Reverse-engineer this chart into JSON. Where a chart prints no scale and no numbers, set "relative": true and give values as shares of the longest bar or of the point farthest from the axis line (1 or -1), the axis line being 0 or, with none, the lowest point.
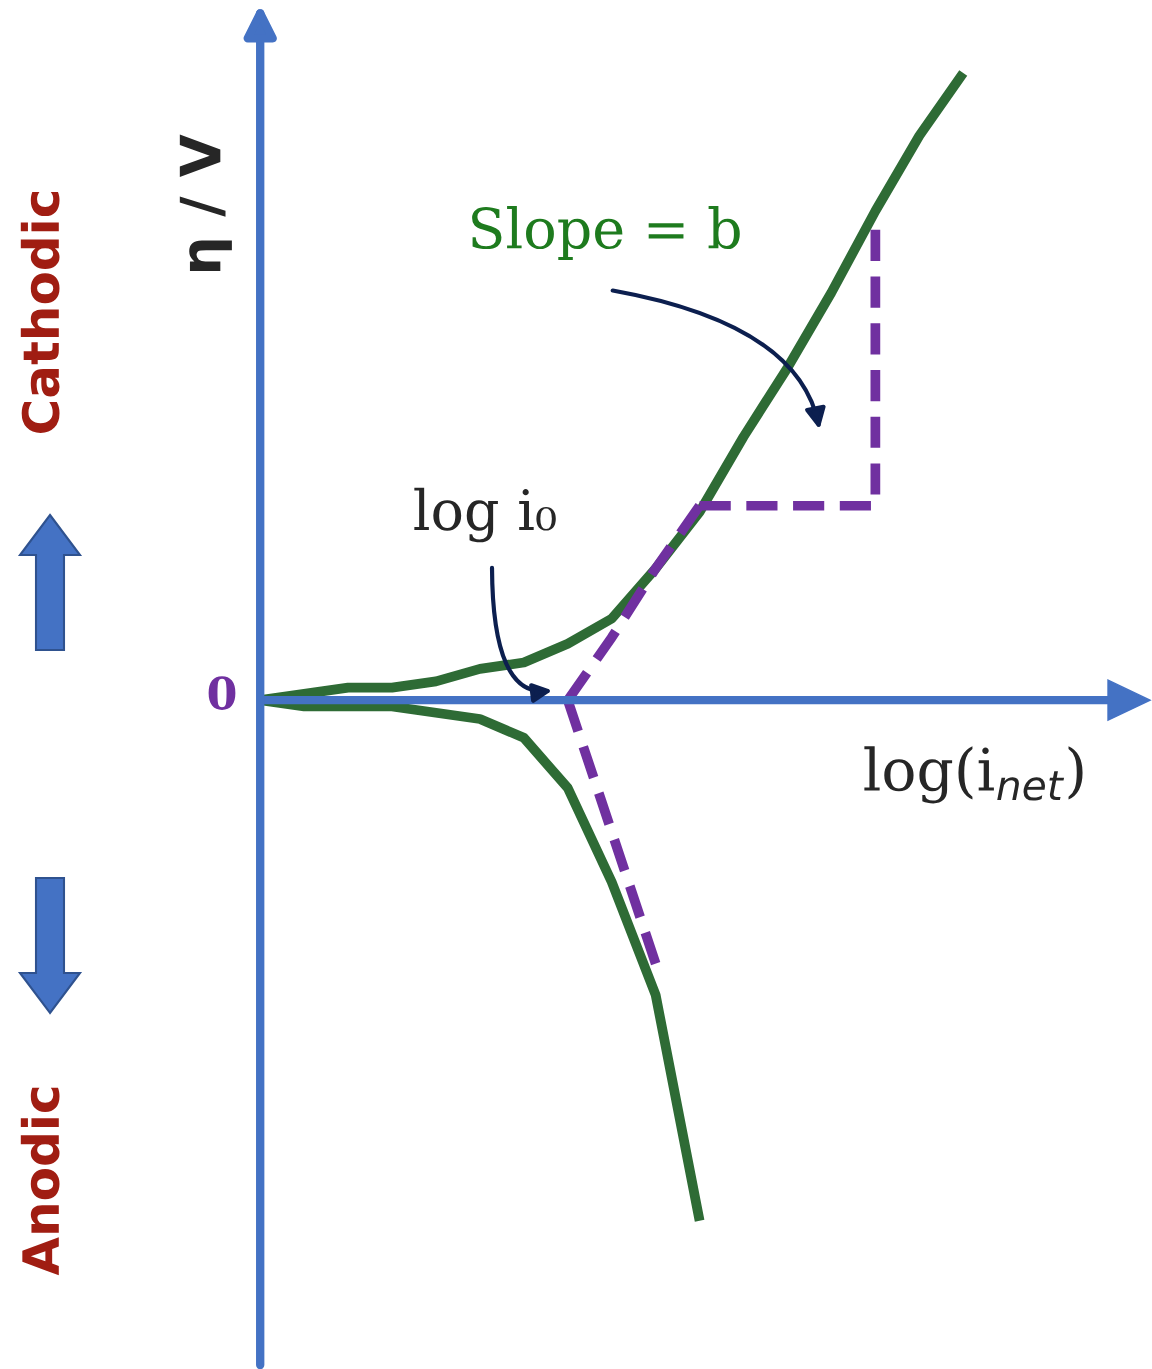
{
  "chart_data": {
    "type": "line",
    "relative": true,
    "legend": false,
    "grid": false,
    "ylabel": "η / V",
    "xlabel": "log(i$_{net}$)",
    "categories": [
      null,
      null,
      null,
      null,
      null,
      null,
      null,
      null,
      null,
      null,
      null,
      null,
      null,
      null,
      null,
      null,
      null,
      null,
      null,
      null,
      null
    ],
    "series": [
      {
        "color": "#2e6b35",
        "values": [
          0.0,
          0.01,
          0.02,
          0.02,
          0.03,
          0.05,
          0.06,
          0.09,
          0.13,
          0.21,
          0.3,
          0.42,
          0.53,
          0.65,
          0.78,
          0.9,
          1.0,
          null,
          null,
          null,
          null
        ]
      },
      {
        "color": "#2e6b35",
        "values": [
          0.0,
          -0.01,
          -0.01,
          -0.01,
          -0.02,
          -0.03,
          -0.06,
          -0.14,
          -0.29,
          -0.47,
          -0.83,
          null,
          null,
          null,
          null,
          null,
          null,
          null,
          null,
          null,
          null
        ]
      },
      {
        "color": "#7030a0",
        "line_style": "dashed",
        "values": [
          null,
          null,
          null,
          null,
          null,
          null,
          null,
          0.0,
          0.1,
          0.21,
          0.31,
          null,
          null,
          null,
          null,
          null,
          null,
          null,
          null,
          null,
          null
        ]
      },
      {
        "color": "#7030a0",
        "line_style": "dashed",
        "values": [
          null,
          null,
          null,
          null,
          null,
          null,
          null,
          0.0,
          -0.21,
          -0.42,
          null,
          null,
          null,
          null,
          null,
          null,
          null,
          null,
          null,
          null,
          null
        ]
      },
      {
        "type": "step",
        "color": "#7030a0",
        "line_style": "dashed",
        "values": [
          null,
          null,
          null,
          null,
          null,
          null,
          null,
          null,
          null,
          null,
          0.31,
          null,
          null,
          null,
          0.75,
          null,
          null,
          null,
          null,
          null,
          null
        ]
      }
    ],
    "ref_lines": [
      {
        "axis": "y",
        "value": 0,
        "color": "#4472c4"
      }
    ],
    "annotations": [
      "0",
      "Slope = b",
      "log i₀",
      "Cathodic",
      "Anodic"
    ]
  }
}
